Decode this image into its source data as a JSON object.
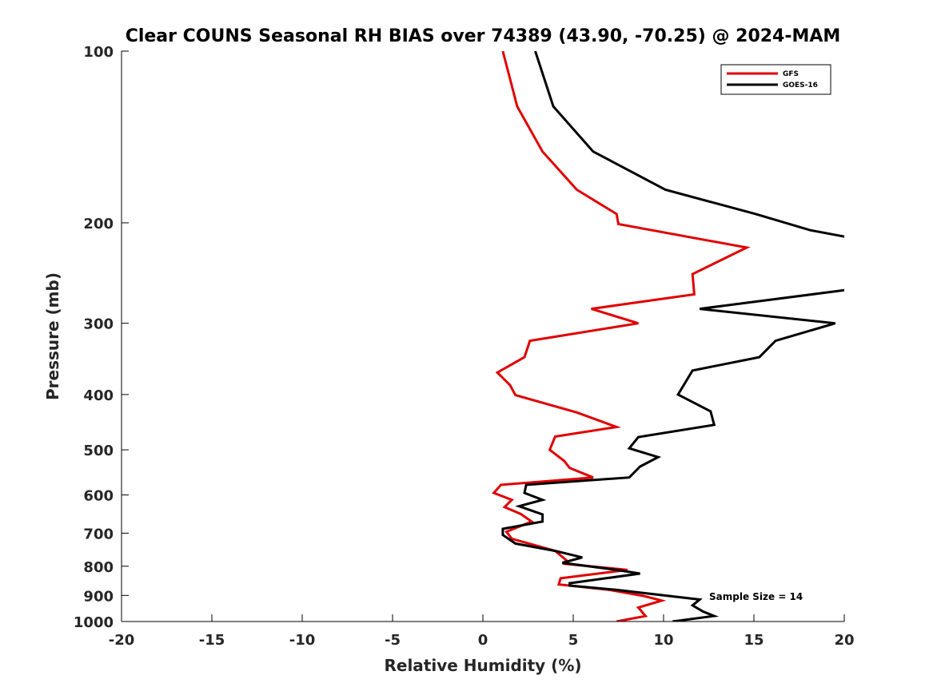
{
  "chart_data": {
    "type": "line",
    "title": "Clear COUNS Seasonal RH BIAS over 74389 (43.90, -70.25) @ 2024-MAM",
    "xlabel": "Relative Humidity (%)",
    "ylabel": "Pressure (mb)",
    "xlim": [
      -20,
      20
    ],
    "ylim": [
      1000,
      100
    ],
    "y_scale": "log",
    "y_reversed": true,
    "x_ticks": [
      "-20",
      "-15",
      "-10",
      "-5",
      "0",
      "5",
      "10",
      "15",
      "20"
    ],
    "y_ticks": [
      "100",
      "200",
      "300",
      "400",
      "500",
      "600",
      "700",
      "800",
      "900",
      "1000"
    ],
    "grid": false,
    "legend_position": "top-right",
    "annotation": "Sample Size = 14",
    "series": [
      {
        "name": "GFS",
        "color": "#e00000",
        "points": [
          [
            1.1,
            100
          ],
          [
            1.9,
            125
          ],
          [
            3.3,
            150
          ],
          [
            5.2,
            175
          ],
          [
            7.4,
            193
          ],
          [
            7.5,
            201
          ],
          [
            14.6,
            221
          ],
          [
            11.6,
            246
          ],
          [
            11.7,
            267
          ],
          [
            6.0,
            283
          ],
          [
            8.6,
            300
          ],
          [
            2.6,
            322
          ],
          [
            2.3,
            344
          ],
          [
            0.8,
            366
          ],
          [
            1.5,
            385
          ],
          [
            1.8,
            401
          ],
          [
            5.2,
            430
          ],
          [
            7.4,
            456
          ],
          [
            4.0,
            474
          ],
          [
            3.7,
            500
          ],
          [
            4.5,
            523
          ],
          [
            4.8,
            538
          ],
          [
            6.1,
            559
          ],
          [
            1.0,
            576
          ],
          [
            0.6,
            595
          ],
          [
            1.6,
            612
          ],
          [
            1.2,
            630
          ],
          [
            2.1,
            648
          ],
          [
            2.7,
            668
          ],
          [
            1.3,
            696
          ],
          [
            1.6,
            716
          ],
          [
            4.0,
            752
          ],
          [
            4.6,
            780
          ],
          [
            4.5,
            792
          ],
          [
            8.0,
            812
          ],
          [
            4.3,
            840
          ],
          [
            4.2,
            861
          ],
          [
            7.0,
            880
          ],
          [
            8.9,
            902
          ],
          [
            9.9,
            919
          ],
          [
            8.6,
            945
          ],
          [
            9.0,
            978
          ],
          [
            7.4,
            1000
          ]
        ]
      },
      {
        "name": "GOES-16",
        "color": "#000000",
        "points": [
          [
            2.9,
            100
          ],
          [
            3.9,
            125
          ],
          [
            6.1,
            150
          ],
          [
            10.1,
            175
          ],
          [
            15.1,
            193
          ],
          [
            18.1,
            206
          ],
          [
            20.2,
            212
          ],
          [
            20.2,
            262
          ],
          [
            12.0,
            283
          ],
          [
            19.5,
            300
          ],
          [
            16.2,
            322
          ],
          [
            15.3,
            344
          ],
          [
            11.6,
            363
          ],
          [
            10.8,
            400
          ],
          [
            12.6,
            428
          ],
          [
            12.8,
            452
          ],
          [
            8.6,
            475
          ],
          [
            8.1,
            497
          ],
          [
            9.7,
            515
          ],
          [
            8.7,
            535
          ],
          [
            8.1,
            559
          ],
          [
            2.4,
            576
          ],
          [
            2.3,
            595
          ],
          [
            3.3,
            612
          ],
          [
            2.0,
            628
          ],
          [
            3.3,
            649
          ],
          [
            3.3,
            668
          ],
          [
            1.1,
            688
          ],
          [
            1.1,
            705
          ],
          [
            1.8,
            730
          ],
          [
            4.0,
            752
          ],
          [
            5.5,
            772
          ],
          [
            4.4,
            789
          ],
          [
            7.4,
            812
          ],
          [
            8.7,
            824
          ],
          [
            4.8,
            857
          ],
          [
            4.8,
            865
          ],
          [
            7.4,
            880
          ],
          [
            12.0,
            915
          ],
          [
            11.6,
            937
          ],
          [
            12.2,
            961
          ],
          [
            12.8,
            978
          ],
          [
            10.5,
            1000
          ]
        ]
      }
    ]
  }
}
